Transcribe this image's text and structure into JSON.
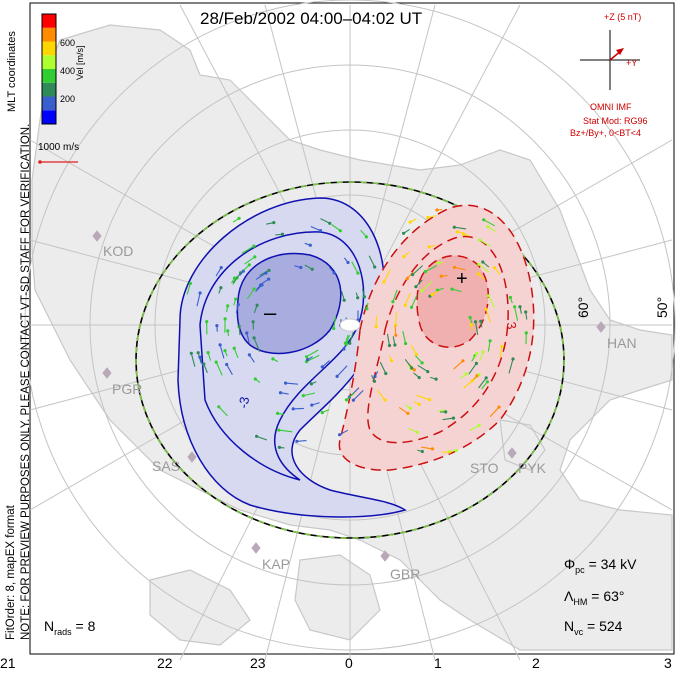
{
  "title": "28/Feb/2002 04:00–04:02 UT",
  "imf": {
    "z_label": "+Z (5 nT)",
    "y_label": "+Y",
    "source": "OMNI IMF",
    "stat_model": "Stat Mod: RG96",
    "conditions": "Bz+/By+, 0<BT<4"
  },
  "colorbar": {
    "label": "Vel [m/s]",
    "ticks": [
      "600",
      "400",
      "200"
    ],
    "colors": [
      "#0000ff",
      "#3a5fcd",
      "#2e8b57",
      "#32cd32",
      "#adff2f",
      "#ffd700",
      "#ff8c00",
      "#ff0000"
    ]
  },
  "scale_vector": {
    "label": "1000 m/s"
  },
  "side_text": {
    "coords": "MLT coordinates",
    "note": "NOTE: FOR PREVIEW PURPOSES ONLY. PLEASE CONTACT VT-SD STAFF FOR VERIFICATION.",
    "fit": "FitOrder: 8, mapEX format"
  },
  "mlt_labels": [
    "21",
    "22",
    "23",
    "0",
    "1",
    "2",
    "3"
  ],
  "lat_labels": [
    "60°",
    "50°"
  ],
  "radar_sites": [
    "KOD",
    "PGR",
    "SAS",
    "KAP",
    "GBR",
    "STO",
    "PYK",
    "HAN"
  ],
  "potential_markers": {
    "min": "–",
    "max": "+"
  },
  "contour_labels": {
    "neg": "-3",
    "pos": "3"
  },
  "stats": {
    "nrads_label": "N",
    "nrads_sub": "rads",
    "nrads_value": "= 8",
    "phi_label": "Φ",
    "phi_sub": "pc",
    "phi_value": "= 34 kV",
    "lambda_label": "Λ",
    "lambda_sub": "HM",
    "lambda_value": "= 63°",
    "nvc_label": "N",
    "nvc_sub": "vc",
    "nvc_value": "= 524"
  },
  "colors": {
    "map_grey": "#c8c8c8",
    "neg_cell": "#1010b0",
    "pos_cell": "#cc1010",
    "neg_fill": "#d6d9f0",
    "pos_fill": "#f6d3d3",
    "boundary_green": "#7cc243",
    "imf_red": "#cc0000"
  }
}
